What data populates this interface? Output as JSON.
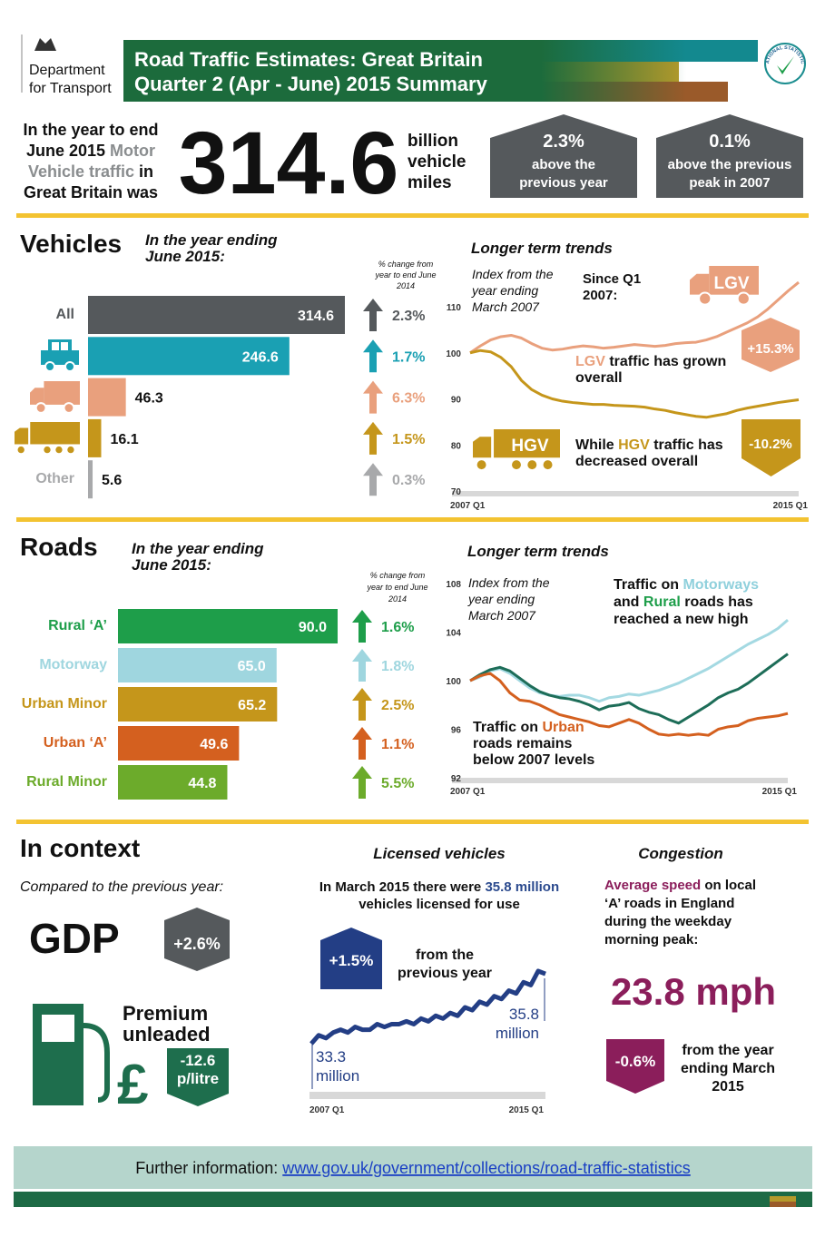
{
  "header": {
    "department": [
      "Department",
      "for Transport"
    ],
    "title": [
      "Road Traffic Estimates: Great Britain",
      "Quarter 2 (Apr - June) 2015 Summary"
    ],
    "badge": "NATIONAL STATISTICS"
  },
  "summary": {
    "intro": [
      [
        "In the year to end"
      ],
      [
        "June 2015 ",
        {
          "t": "Motor",
          "c": "#8a8d8f"
        }
      ],
      [
        {
          "t": "Vehicle traffic",
          "c": "#8a8d8f"
        },
        " in"
      ],
      [
        "Great Britain was"
      ]
    ],
    "total": 314.6,
    "unit": [
      "billion",
      "vehicle",
      "miles"
    ],
    "badges": [
      {
        "value": "2.3%",
        "text": [
          "above the",
          "previous year"
        ]
      },
      {
        "value": "0.1%",
        "text": [
          "above the previous",
          "peak in 2007"
        ]
      }
    ]
  },
  "vehicles": {
    "title": "Vehicles",
    "subtitle": [
      "In the year ending",
      "June 2015:"
    ],
    "change_header": [
      "% change from",
      "year to end June",
      "2014"
    ],
    "bars": {
      "type": "bar",
      "categories": [
        "All",
        null,
        null,
        null,
        "Other"
      ],
      "values": [
        314.6,
        246.6,
        46.3,
        16.1,
        5.6
      ],
      "colors": [
        "#55595c",
        "#1aa0b3",
        "#e9a07d",
        "#c5961b",
        "#a8a9ab"
      ],
      "changes": [
        2.3,
        1.7,
        6.3,
        1.5,
        0.3
      ],
      "change_labels": [
        "2.3%",
        "1.7%",
        "6.3%",
        "1.5%",
        "0.3%"
      ]
    },
    "trends": {
      "type": "line",
      "title": "Longer term trends",
      "note": [
        "Index from the",
        "year ending",
        "March 2007"
      ],
      "since": [
        "Since Q1",
        "2007:"
      ],
      "categories": [
        "2007 Q1",
        null,
        null,
        null,
        null,
        null,
        null,
        null,
        null,
        null,
        null,
        null,
        null,
        null,
        null,
        null,
        null,
        null,
        null,
        null,
        null,
        null,
        null,
        null,
        null,
        null,
        null,
        null,
        null,
        null,
        null,
        null,
        "2015 Q1"
      ],
      "ylim": [
        70,
        110
      ],
      "yticks": [
        70,
        80,
        90,
        100,
        110
      ],
      "series": [
        {
          "name": "LGV",
          "color": "#e9a07d",
          "values": [
            100,
            101.5,
            102.8,
            103.5,
            103.8,
            103.2,
            102,
            101,
            100.6,
            100.8,
            101.2,
            101.5,
            101.3,
            101,
            101.2,
            101.5,
            101.8,
            101.6,
            101.4,
            101.6,
            102,
            102.2,
            102.3,
            102.8,
            103.5,
            104.5,
            105.5,
            106.5,
            107.8,
            109.5,
            111.5,
            113.5,
            115.3
          ],
          "change": "+15.3%",
          "caption": [
            [
              {
                "t": "LGV",
                "c": "#e9a07d"
              },
              " traffic has grown"
            ],
            [
              "overall"
            ]
          ]
        },
        {
          "name": "HGV",
          "color": "#c5961b",
          "values": [
            100,
            100.5,
            100.2,
            99,
            97,
            94,
            92,
            90.8,
            90,
            89.5,
            89.2,
            89,
            88.8,
            88.8,
            88.6,
            88.5,
            88.4,
            88.2,
            87.8,
            87.5,
            87,
            86.6,
            86.2,
            86,
            86.4,
            86.8,
            87.5,
            88,
            88.4,
            88.8,
            89.2,
            89.5,
            89.8
          ],
          "change": "-10.2%",
          "caption": [
            [
              "While ",
              {
                "t": "HGV",
                "c": "#c5961b"
              },
              " traffic has"
            ],
            [
              "decreased overall"
            ]
          ]
        }
      ]
    }
  },
  "roads": {
    "title": "Roads",
    "subtitle": [
      "In the year ending",
      "June 2015:"
    ],
    "change_header": [
      "% change from",
      "year to end June",
      "2014"
    ],
    "bars": {
      "type": "bar",
      "categories": [
        "Rural ‘A’",
        "Motorway",
        "Urban Minor",
        "Urban ‘A’",
        "Rural Minor"
      ],
      "values": [
        90,
        65,
        65.2,
        49.6,
        44.8
      ],
      "value_labels": [
        "90.0",
        "65.0",
        "65.2",
        "49.6",
        "44.8"
      ],
      "colors": [
        "#1e9e4a",
        "#9fd6df",
        "#c5961b",
        "#d4601f",
        "#6cab2b"
      ],
      "changes": [
        1.6,
        1.8,
        2.5,
        1.1,
        5.5
      ],
      "change_labels": [
        "1.6%",
        "1.8%",
        "2.5%",
        "1.1%",
        "5.5%"
      ]
    },
    "trends": {
      "type": "line",
      "title": "Longer term trends",
      "note": [
        "Index from the",
        "year ending",
        "March 2007"
      ],
      "categories": [
        "2007 Q1",
        null,
        null,
        null,
        null,
        null,
        null,
        null,
        null,
        null,
        null,
        null,
        null,
        null,
        null,
        null,
        null,
        null,
        null,
        null,
        null,
        null,
        null,
        null,
        null,
        null,
        null,
        null,
        null,
        null,
        null,
        null,
        "2015 Q1"
      ],
      "ylim": [
        92,
        108
      ],
      "yticks": [
        92,
        96,
        100,
        104,
        108
      ],
      "series": [
        {
          "color": "#a4d9e2",
          "values": [
            100,
            100.3,
            100.8,
            101,
            100.6,
            100,
            99.4,
            99,
            98.8,
            98.7,
            98.8,
            98.8,
            98.6,
            98.3,
            98.6,
            98.7,
            98.9,
            98.8,
            99,
            99.2,
            99.5,
            99.8,
            100.2,
            100.6,
            101,
            101.5,
            102,
            102.5,
            103,
            103.4,
            103.8,
            104.3,
            105
          ]
        },
        {
          "color": "#1d6d58",
          "values": [
            100,
            100.5,
            100.9,
            101.1,
            100.8,
            100.2,
            99.6,
            99.1,
            98.8,
            98.6,
            98.5,
            98.3,
            98,
            97.6,
            97.9,
            98,
            98.2,
            97.7,
            97.4,
            97.2,
            96.8,
            96.5,
            97,
            97.5,
            98,
            98.6,
            99,
            99.3,
            99.8,
            100.4,
            101,
            101.6,
            102.2
          ]
        },
        {
          "color": "#d4601f",
          "values": [
            100,
            100.4,
            100.6,
            100,
            99,
            98.4,
            98.3,
            98,
            97.6,
            97.2,
            97,
            96.8,
            96.6,
            96.3,
            96.2,
            96.5,
            96.8,
            96.5,
            96,
            95.6,
            95.5,
            95.6,
            95.5,
            95.6,
            95.5,
            96,
            96.2,
            96.3,
            96.7,
            96.9,
            97,
            97.1,
            97.3
          ]
        }
      ],
      "captions": [
        [
          [
            "Traffic on ",
            {
              "t": "Motorways",
              "c": "#8fd0dc"
            }
          ],
          [
            "and ",
            {
              "t": "Rural",
              "c": "#1e9e4a"
            },
            " roads has"
          ],
          [
            "reached a new high"
          ]
        ],
        [
          [
            "Traffic on ",
            {
              "t": "Urban",
              "c": "#d4601f"
            }
          ],
          [
            "roads remains"
          ],
          [
            "below 2007 levels"
          ]
        ]
      ]
    }
  },
  "context": {
    "title": "In context",
    "compared": "Compared to the previous year:",
    "gdp": {
      "label": "GDP",
      "change": "+2.6%"
    },
    "petrol": {
      "label": [
        "Premium",
        "unleaded"
      ],
      "symbol": "£",
      "change": [
        "-12.6",
        "p/litre"
      ]
    },
    "licensed": {
      "title": "Licensed vehicles",
      "text": [
        [
          "In March 2015 there were ",
          {
            "t": "35.8 million",
            "c": "#2b4a8e"
          }
        ],
        [
          "vehicles licensed for use"
        ]
      ],
      "change": "+1.5%",
      "change_note": [
        "from the",
        "previous year"
      ],
      "chart": {
        "type": "line",
        "color": "#233e85",
        "categories": [
          "2007 Q1",
          null,
          null,
          null,
          null,
          null,
          null,
          null,
          null,
          null,
          null,
          null,
          null,
          null,
          null,
          null,
          null,
          null,
          null,
          null,
          null,
          null,
          null,
          null,
          null,
          null,
          null,
          null,
          null,
          null,
          null,
          null,
          "2015 Q1"
        ],
        "values": [
          33.3,
          33.6,
          33.5,
          33.7,
          33.8,
          33.7,
          33.9,
          33.8,
          33.8,
          34.0,
          33.9,
          34.0,
          34.0,
          34.1,
          34.0,
          34.2,
          34.1,
          34.3,
          34.2,
          34.4,
          34.3,
          34.6,
          34.5,
          34.8,
          34.7,
          35.0,
          34.9,
          35.2,
          35.1,
          35.5,
          35.4,
          35.9,
          35.8
        ],
        "start_label": [
          "33.3",
          "million"
        ],
        "end_label": [
          "35.8",
          "million"
        ]
      }
    },
    "congestion": {
      "title": "Congestion",
      "text": [
        [
          {
            "t": "Average speed",
            "c": "#8b1e5b"
          },
          " on local"
        ],
        [
          "‘A’ roads in England"
        ],
        [
          "during the weekday"
        ],
        [
          "morning peak:"
        ]
      ],
      "speed": "23.8 mph",
      "change": "-0.6%",
      "change_note": [
        "from the year",
        "ending March",
        "2015"
      ]
    }
  },
  "footer": {
    "label": "Further information: ",
    "link": "www.gov.uk/government/collections/road-traffic-statistics"
  }
}
